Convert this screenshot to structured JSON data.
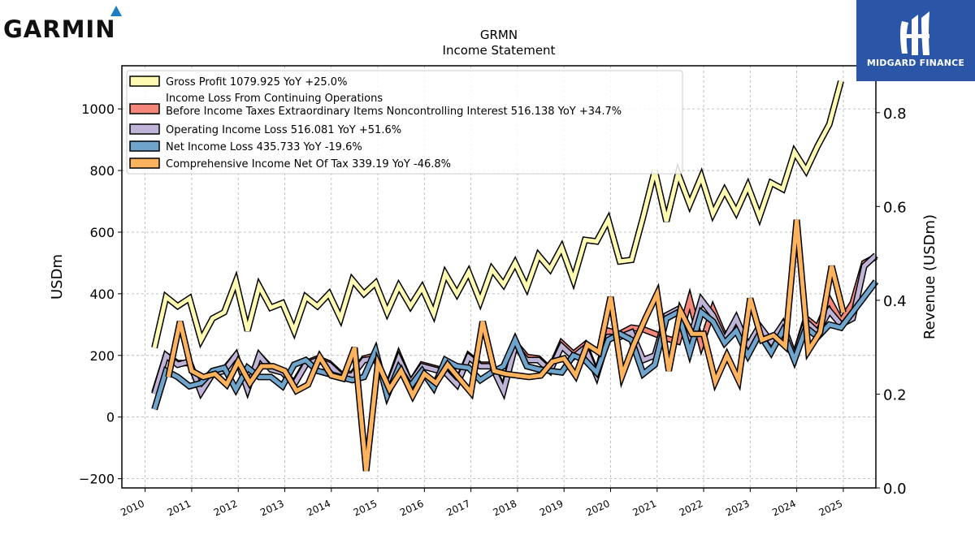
{
  "brand": {
    "garmin_logo_text": "GARMIN",
    "partner_logo_text": "MIDGARD FINANCE",
    "partner_bg_color": "#2b56a8"
  },
  "chart_data": {
    "type": "line",
    "title": "GRMN",
    "subtitle": "Income Statement",
    "ylabel": "USDm",
    "y2label": "Revenue (USDm)",
    "ylim": [
      -230,
      1140
    ],
    "yticks": [
      -200,
      0,
      200,
      400,
      600,
      800,
      1000
    ],
    "y2lim": [
      0,
      0.9
    ],
    "y2ticks": [
      "0.0",
      "0.2",
      "0.4",
      "0.6",
      "0.8"
    ],
    "xlim": [
      2009.5,
      2025.7
    ],
    "xticks": [
      "2010",
      "2011",
      "2012",
      "2013",
      "2014",
      "2015",
      "2016",
      "2017",
      "2018",
      "2019",
      "2020",
      "2021",
      "2022",
      "2023",
      "2024",
      "2025"
    ],
    "grid": true,
    "legend_position": "upper-left",
    "series": [
      {
        "name": "Income Loss From Continuing Operations",
        "name_line2": "Before Income Taxes Extraordinary Items Noncontrolling Interest",
        "legend": "516.138 YoY +34.7%",
        "color": "#f4877a",
        "x_start": 2010.2,
        "x_step": 0.25,
        "values": [
          80,
          200,
          175,
          175,
          85,
          145,
          155,
          200,
          90,
          200,
          160,
          150,
          110,
          175,
          190,
          175,
          140,
          140,
          190,
          200,
          95,
          200,
          110,
          170,
          160,
          150,
          110,
          200,
          170,
          170,
          90,
          240,
          195,
          190,
          155,
          240,
          205,
          235,
          140,
          280,
          270,
          290,
          285,
          270,
          255,
          245,
          380,
          235,
          350,
          260,
          305,
          225,
          290,
          240,
          300,
          195,
          320,
          290,
          380,
          310,
          370,
          500,
          520
        ]
      },
      {
        "name": "Operating Income Loss",
        "legend": "516.081 YoY +51.6%",
        "color": "#c0b3d8",
        "x_start": 2010.2,
        "x_step": 0.25,
        "values": [
          75,
          200,
          170,
          180,
          80,
          140,
          150,
          200,
          90,
          200,
          155,
          145,
          105,
          170,
          185,
          170,
          135,
          135,
          185,
          190,
          90,
          190,
          110,
          165,
          155,
          145,
          105,
          195,
          165,
          165,
          85,
          230,
          185,
          185,
          150,
          230,
          195,
          225,
          135,
          260,
          260,
          275,
          185,
          200,
          330,
          350,
          250,
          380,
          330,
          250,
          320,
          230,
          295,
          245,
          300,
          195,
          310,
          275,
          345,
          300,
          320,
          490,
          525
        ]
      },
      {
        "name": "Net Income Loss",
        "legend": "435.733 YoY -19.6%",
        "color": "#6fa5cc",
        "x_start": 2010.2,
        "x_step": 0.25,
        "values": [
          25,
          150,
          130,
          100,
          110,
          150,
          160,
          90,
          160,
          130,
          130,
          100,
          170,
          185,
          150,
          140,
          130,
          120,
          130,
          215,
          70,
          160,
          100,
          150,
          95,
          185,
          165,
          160,
          120,
          145,
          165,
          250,
          165,
          155,
          150,
          145,
          200,
          185,
          145,
          250,
          270,
          250,
          140,
          170,
          320,
          340,
          210,
          340,
          310,
          240,
          280,
          200,
          270,
          210,
          280,
          185,
          290,
          260,
          300,
          290,
          340,
          390,
          440
        ]
      },
      {
        "name": "Comprehensive Income Net Of Tax",
        "legend": "339.19 YoY -46.8%",
        "color": "#fdb35e",
        "x_start": 2010.5,
        "x_step": 0.25,
        "values": [
          130,
          310,
          150,
          130,
          140,
          105,
          180,
          110,
          165,
          165,
          150,
          85,
          105,
          195,
          135,
          125,
          225,
          -175,
          175,
          90,
          150,
          70,
          140,
          110,
          170,
          125,
          80,
          310,
          150,
          140,
          135,
          130,
          135,
          180,
          190,
          135,
          235,
          210,
          390,
          135,
          235,
          320,
          400,
          150,
          345,
          270,
          270,
          115,
          200,
          120,
          385,
          250,
          265,
          230,
          640,
          215,
          275,
          490,
          339
        ]
      },
      {
        "name": "Gross Profit",
        "legend": "1079.925 YoY +25.0%",
        "color": "#fefab1",
        "x_start": 2010.2,
        "x_step": 0.25,
        "values": [
          225,
          390,
          360,
          385,
          250,
          320,
          340,
          440,
          280,
          425,
          355,
          370,
          280,
          390,
          360,
          400,
          320,
          445,
          400,
          435,
          340,
          425,
          360,
          420,
          335,
          465,
          400,
          470,
          375,
          480,
          430,
          500,
          420,
          525,
          480,
          550,
          445,
          575,
          570,
          640,
          505,
          510,
          650,
          800,
          635,
          790,
          690,
          780,
          660,
          735,
          665,
          750,
          650,
          760,
          740,
          860,
          800,
          880,
          950,
          1090
        ]
      }
    ]
  }
}
